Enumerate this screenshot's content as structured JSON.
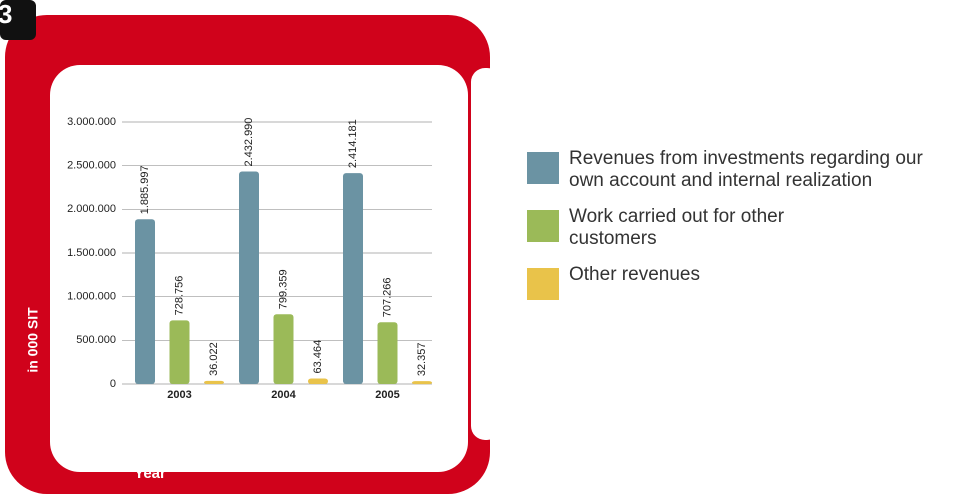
{
  "chart_data": {
    "type": "bar",
    "badge": "3",
    "categories": [
      "2003",
      "2004",
      "2005"
    ],
    "series": [
      {
        "name": "Revenues from investments regarding our own account and internal realization",
        "color": "#6b93a3",
        "values": [
          1885997,
          2432990,
          2414181
        ],
        "value_labels": [
          "1.885.997",
          "2.432.990",
          "2.414.181"
        ]
      },
      {
        "name": "Work carried out for other customers",
        "color": "#9bba58",
        "values": [
          728756,
          799359,
          707266
        ],
        "value_labels": [
          "728.756",
          "799.359",
          "707.266"
        ]
      },
      {
        "name": "Other revenues",
        "color": "#e9c34a",
        "values": [
          36022,
          63464,
          32357
        ],
        "value_labels": [
          "36.022",
          "63.464",
          "32.357"
        ]
      }
    ],
    "ylabel": "in 000 SIT",
    "xlabel": "Year",
    "ylim": [
      0,
      3000000
    ],
    "yticks": [
      0,
      {
        "value": 500000,
        "label": "500.000"
      },
      {
        "value": 1000000,
        "label": "1.000.000"
      },
      {
        "value": 1500000,
        "label": "1.500.000"
      },
      {
        "value": 2000000,
        "label": "2.000.000"
      },
      {
        "value": 2500000,
        "label": "2.500.000"
      },
      {
        "value": 3000000,
        "label": "3.000.000"
      }
    ],
    "grid": true,
    "legend": "right"
  }
}
